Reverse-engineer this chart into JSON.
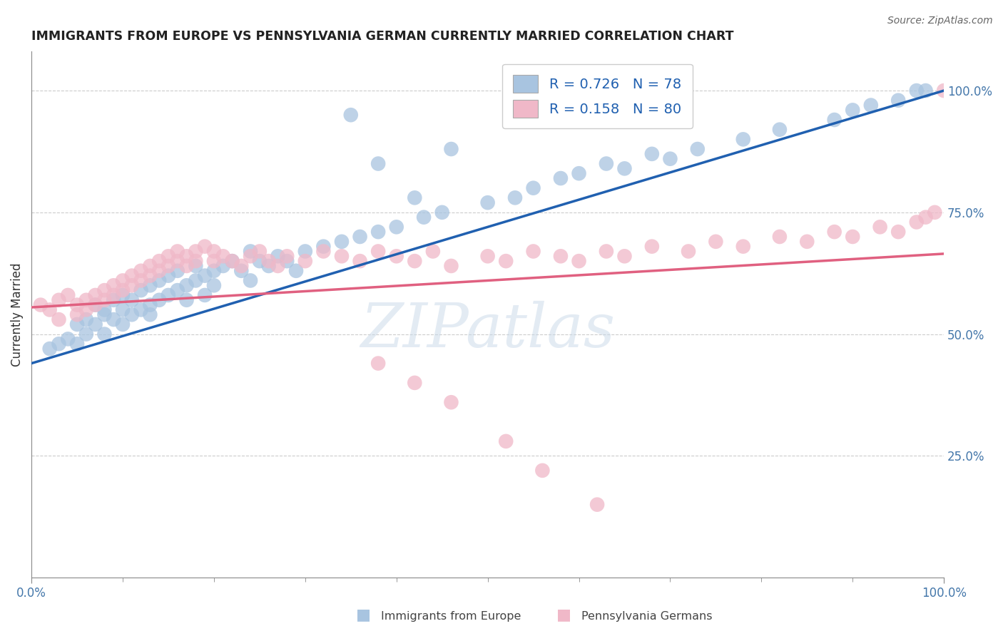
{
  "title": "IMMIGRANTS FROM EUROPE VS PENNSYLVANIA GERMAN CURRENTLY MARRIED CORRELATION CHART",
  "source": "Source: ZipAtlas.com",
  "ylabel": "Currently Married",
  "right_yticks": [
    "100.0%",
    "75.0%",
    "50.0%",
    "25.0%"
  ],
  "right_ytick_vals": [
    1.0,
    0.75,
    0.5,
    0.25
  ],
  "legend_title_blue": "Immigrants from Europe",
  "legend_title_pink": "Pennsylvania Germans",
  "watermark": "ZIPatlas",
  "blue_color": "#a8c4e0",
  "pink_color": "#f0b8c8",
  "blue_line_color": "#2060b0",
  "pink_line_color": "#e06080",
  "title_color": "#222222",
  "axis_color": "#888888",
  "grid_color": "#cccccc",
  "background_color": "#ffffff",
  "legend_color": "#2060b0",
  "blue_R": 0.726,
  "blue_N": 78,
  "pink_R": 0.158,
  "pink_N": 80,
  "blue_line_x0": 0.0,
  "blue_line_y0": 0.44,
  "blue_line_x1": 1.0,
  "blue_line_y1": 1.0,
  "pink_line_x0": 0.0,
  "pink_line_y0": 0.555,
  "pink_line_x1": 1.0,
  "pink_line_y1": 0.665,
  "ylim_min": 0.0,
  "ylim_max": 1.08,
  "xlim_min": 0.0,
  "xlim_max": 1.0,
  "blue_scatter_x": [
    0.02,
    0.03,
    0.04,
    0.05,
    0.05,
    0.06,
    0.06,
    0.07,
    0.07,
    0.08,
    0.08,
    0.08,
    0.09,
    0.09,
    0.1,
    0.1,
    0.1,
    0.11,
    0.11,
    0.12,
    0.12,
    0.13,
    0.13,
    0.13,
    0.14,
    0.14,
    0.15,
    0.15,
    0.16,
    0.16,
    0.17,
    0.17,
    0.18,
    0.18,
    0.19,
    0.19,
    0.2,
    0.2,
    0.21,
    0.22,
    0.23,
    0.24,
    0.24,
    0.25,
    0.26,
    0.27,
    0.28,
    0.29,
    0.3,
    0.32,
    0.34,
    0.36,
    0.38,
    0.4,
    0.43,
    0.45,
    0.5,
    0.53,
    0.55,
    0.58,
    0.6,
    0.63,
    0.65,
    0.68,
    0.7,
    0.73,
    0.78,
    0.82,
    0.88,
    0.9,
    0.92,
    0.95,
    0.97,
    0.98,
    0.35,
    0.38,
    0.42,
    0.46
  ],
  "blue_scatter_y": [
    0.47,
    0.48,
    0.49,
    0.52,
    0.48,
    0.5,
    0.53,
    0.52,
    0.56,
    0.54,
    0.5,
    0.55,
    0.53,
    0.57,
    0.52,
    0.55,
    0.58,
    0.54,
    0.57,
    0.55,
    0.59,
    0.56,
    0.54,
    0.6,
    0.57,
    0.61,
    0.58,
    0.62,
    0.59,
    0.63,
    0.6,
    0.57,
    0.61,
    0.64,
    0.62,
    0.58,
    0.63,
    0.6,
    0.64,
    0.65,
    0.63,
    0.67,
    0.61,
    0.65,
    0.64,
    0.66,
    0.65,
    0.63,
    0.67,
    0.68,
    0.69,
    0.7,
    0.71,
    0.72,
    0.74,
    0.75,
    0.77,
    0.78,
    0.8,
    0.82,
    0.83,
    0.85,
    0.84,
    0.87,
    0.86,
    0.88,
    0.9,
    0.92,
    0.94,
    0.96,
    0.97,
    0.98,
    1.0,
    1.0,
    0.95,
    0.85,
    0.78,
    0.88
  ],
  "pink_scatter_x": [
    0.01,
    0.02,
    0.03,
    0.03,
    0.04,
    0.05,
    0.05,
    0.06,
    0.06,
    0.07,
    0.07,
    0.08,
    0.08,
    0.09,
    0.09,
    0.1,
    0.1,
    0.11,
    0.11,
    0.12,
    0.12,
    0.13,
    0.13,
    0.14,
    0.14,
    0.15,
    0.15,
    0.16,
    0.16,
    0.17,
    0.17,
    0.18,
    0.18,
    0.19,
    0.2,
    0.2,
    0.21,
    0.22,
    0.23,
    0.24,
    0.25,
    0.26,
    0.27,
    0.28,
    0.3,
    0.32,
    0.34,
    0.36,
    0.38,
    0.4,
    0.42,
    0.44,
    0.46,
    0.5,
    0.52,
    0.55,
    0.58,
    0.6,
    0.63,
    0.65,
    0.68,
    0.72,
    0.75,
    0.78,
    0.82,
    0.85,
    0.88,
    0.9,
    0.93,
    0.95,
    0.97,
    0.98,
    0.99,
    1.0,
    0.38,
    0.42,
    0.46,
    0.52,
    0.56,
    0.62
  ],
  "pink_scatter_y": [
    0.56,
    0.55,
    0.57,
    0.53,
    0.58,
    0.56,
    0.54,
    0.57,
    0.55,
    0.58,
    0.56,
    0.59,
    0.57,
    0.6,
    0.58,
    0.61,
    0.59,
    0.62,
    0.6,
    0.63,
    0.61,
    0.64,
    0.62,
    0.65,
    0.63,
    0.64,
    0.66,
    0.65,
    0.67,
    0.66,
    0.64,
    0.67,
    0.65,
    0.68,
    0.67,
    0.65,
    0.66,
    0.65,
    0.64,
    0.66,
    0.67,
    0.65,
    0.64,
    0.66,
    0.65,
    0.67,
    0.66,
    0.65,
    0.67,
    0.66,
    0.65,
    0.67,
    0.64,
    0.66,
    0.65,
    0.67,
    0.66,
    0.65,
    0.67,
    0.66,
    0.68,
    0.67,
    0.69,
    0.68,
    0.7,
    0.69,
    0.71,
    0.7,
    0.72,
    0.71,
    0.73,
    0.74,
    0.75,
    1.0,
    0.44,
    0.4,
    0.36,
    0.28,
    0.22,
    0.15
  ]
}
